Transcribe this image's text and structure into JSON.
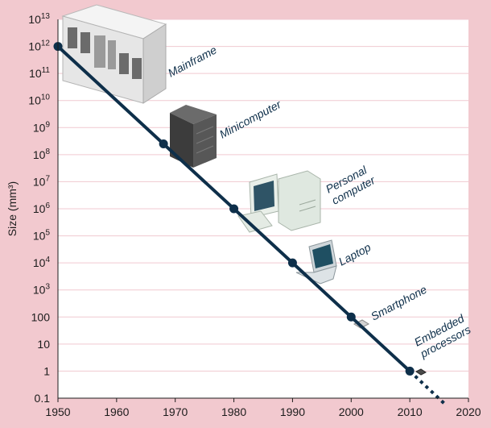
{
  "chart_data": {
    "type": "line",
    "ylabel": "Size (mm³)",
    "y_scale": "log",
    "xlim": [
      1950,
      2020
    ],
    "ylim_log10": [
      -1,
      13
    ],
    "x_ticks": [
      "1950",
      "1960",
      "1970",
      "1980",
      "1990",
      "2000",
      "2010",
      "2020"
    ],
    "y_ticks": [
      {
        "exp": 13,
        "base": "10",
        "sup": "13"
      },
      {
        "exp": 12,
        "base": "10",
        "sup": "12"
      },
      {
        "exp": 11,
        "base": "10",
        "sup": "11"
      },
      {
        "exp": 10,
        "base": "10",
        "sup": "10"
      },
      {
        "exp": 9,
        "base": "10",
        "sup": "9"
      },
      {
        "exp": 8,
        "base": "10",
        "sup": "8"
      },
      {
        "exp": 7,
        "base": "10",
        "sup": "7"
      },
      {
        "exp": 6,
        "base": "10",
        "sup": "6"
      },
      {
        "exp": 5,
        "base": "10",
        "sup": "5"
      },
      {
        "exp": 4,
        "base": "10",
        "sup": "4"
      },
      {
        "exp": 3,
        "base": "10",
        "sup": "3"
      },
      {
        "exp": 2,
        "base": "100",
        "sup": ""
      },
      {
        "exp": 1,
        "base": "10",
        "sup": ""
      },
      {
        "exp": 0,
        "base": "1",
        "sup": ""
      },
      {
        "exp": -1,
        "base": "0.1",
        "sup": ""
      }
    ],
    "points": [
      {
        "x": 1950,
        "y": 1000000000000.0,
        "label": "Mainframe"
      },
      {
        "x": 1968,
        "y": 250000000.0,
        "label": "Minicomputer"
      },
      {
        "x": 1980,
        "y": 1000000.0,
        "label": "Personal computer"
      },
      {
        "x": 1990,
        "y": 10000.0,
        "label": "Laptop"
      },
      {
        "x": 2000,
        "y": 100,
        "label": "Smartphone"
      },
      {
        "x": 2010,
        "y": 1,
        "label": "Embedded processors"
      }
    ],
    "projection": {
      "x": [
        2010,
        2016
      ],
      "y": [
        1,
        0.06
      ],
      "style": "dashed"
    },
    "grid": true,
    "colors": {
      "line": "#0e2f4a",
      "grid": "#f0c9d0",
      "plot_bg": "#ffffff",
      "page_bg": "#f2c9cf"
    }
  }
}
